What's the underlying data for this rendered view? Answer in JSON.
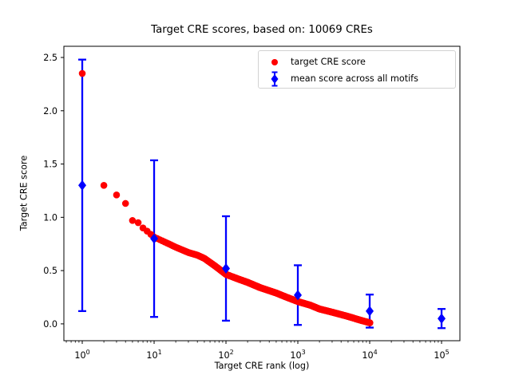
{
  "figure": {
    "title": "Target CRE scores, based on: 10069 CREs",
    "xlabel": "Target CRE rank (log)",
    "ylabel": "Target CRE score"
  },
  "legend": {
    "position": "upper right",
    "items": [
      {
        "label": "target CRE score",
        "marker": "red-circle",
        "color": "#ff0000"
      },
      {
        "label": "mean score across all motifs",
        "marker": "blue-diamond-errorbar",
        "color": "#0000ff"
      }
    ]
  },
  "chart_data": {
    "type": "scatter",
    "title": "Target CRE scores, based on: 10069 CREs",
    "xlabel": "Target CRE rank (log)",
    "ylabel": "Target CRE score",
    "x_scale": "log",
    "y_scale": "linear",
    "grid": false,
    "legend_position": "upper right",
    "xlim": [
      0.555,
      180000
    ],
    "ylim": [
      -0.158,
      2.605
    ],
    "x_ticks": {
      "base": "10",
      "exponents": [
        0,
        1,
        2,
        3,
        4,
        5
      ],
      "values": [
        1,
        10,
        100,
        1000,
        10000,
        100000
      ]
    },
    "y_ticks": {
      "values": [
        0,
        0.5,
        1,
        1.5,
        2,
        2.5
      ],
      "labels": [
        "0.0",
        "0.5",
        "1.0",
        "1.5",
        "2.0",
        "2.5"
      ]
    },
    "series": [
      {
        "name": "target CRE score",
        "marker": "circle",
        "color": "#ff0000",
        "n_points": 10069,
        "anchor_ranks": [
          1,
          2,
          3,
          4,
          5,
          6,
          7,
          8,
          9,
          10,
          12,
          15,
          20,
          30,
          40,
          50,
          70,
          100,
          150,
          200,
          300,
          500,
          700,
          1000,
          1500,
          2000,
          3000,
          5000,
          7000,
          10069
        ],
        "anchor_scores": [
          2.35,
          1.3,
          1.21,
          1.13,
          0.97,
          0.95,
          0.9,
          0.87,
          0.84,
          0.815,
          0.79,
          0.76,
          0.72,
          0.67,
          0.645,
          0.615,
          0.545,
          0.465,
          0.42,
          0.39,
          0.34,
          0.29,
          0.25,
          0.21,
          0.175,
          0.14,
          0.11,
          0.07,
          0.04,
          0.01
        ]
      },
      {
        "name": "mean score across all motifs",
        "marker": "diamond",
        "color": "#0000ff",
        "x": [
          1,
          10,
          100,
          1000,
          10000,
          100000
        ],
        "y": [
          1.3,
          0.8,
          0.52,
          0.27,
          0.12,
          0.05
        ],
        "yerr": [
          1.18,
          0.735,
          0.49,
          0.28,
          0.155,
          0.09
        ]
      }
    ]
  }
}
